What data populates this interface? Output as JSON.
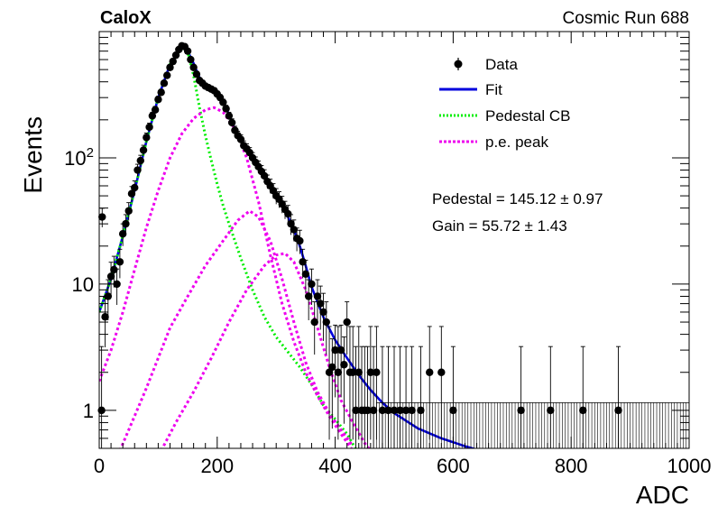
{
  "header": {
    "left_label": "CaloX",
    "right_label": "Cosmic Run 688"
  },
  "chart_data": {
    "type": "scatter",
    "title": "",
    "xlabel": "ADC",
    "ylabel": "Events",
    "xlim": [
      0,
      1000
    ],
    "ylim": [
      0.5,
      1000
    ],
    "yscale": "log",
    "x_ticks": [
      0,
      200,
      400,
      600,
      800,
      1000
    ],
    "x_tick_labels": [
      "0",
      "200",
      "400",
      "600",
      "800",
      "1000"
    ],
    "y_ticks": [
      1,
      10,
      100
    ],
    "y_tick_labels": [
      "1",
      "10",
      "10^2"
    ],
    "grid": false,
    "legend_position": "top-right",
    "legend": [
      {
        "label": "Data",
        "style": "markers-errorbars",
        "color": "#000000"
      },
      {
        "label": "Fit",
        "style": "solid",
        "color": "#0000dd"
      },
      {
        "label": "Pedestal CB",
        "style": "dotted",
        "color": "#00ee00"
      },
      {
        "label": "p.e. peak",
        "style": "dotted",
        "color": "#ee00ee"
      }
    ],
    "annotations": [
      {
        "text": "Pedestal = 145.12",
        "pm": "0.97"
      },
      {
        "text": "Gain = 55.72",
        "pm": "1.43"
      }
    ],
    "parameters": {
      "pedestal": 145.12,
      "pedestal_err": 0.97,
      "gain": 55.72,
      "gain_err": 1.43
    },
    "series": [
      {
        "name": "Data",
        "type": "scatter",
        "color": "#000000",
        "points": [
          [
            4,
            1
          ],
          [
            5,
            34
          ],
          [
            10,
            5.5
          ],
          [
            15,
            8
          ],
          [
            20,
            11.5
          ],
          [
            25,
            13
          ],
          [
            30,
            10
          ],
          [
            35,
            15
          ],
          [
            40,
            25
          ],
          [
            45,
            30
          ],
          [
            50,
            38
          ],
          [
            55,
            52
          ],
          [
            60,
            58
          ],
          [
            65,
            80
          ],
          [
            70,
            95
          ],
          [
            75,
            115
          ],
          [
            80,
            145
          ],
          [
            85,
            175
          ],
          [
            90,
            215
          ],
          [
            95,
            240
          ],
          [
            100,
            290
          ],
          [
            105,
            330
          ],
          [
            110,
            390
          ],
          [
            115,
            450
          ],
          [
            120,
            520
          ],
          [
            125,
            580
          ],
          [
            130,
            650
          ],
          [
            135,
            720
          ],
          [
            140,
            770
          ],
          [
            145,
            760
          ],
          [
            150,
            700
          ],
          [
            155,
            600
          ],
          [
            160,
            520
          ],
          [
            165,
            460
          ],
          [
            170,
            410
          ],
          [
            175,
            390
          ],
          [
            180,
            370
          ],
          [
            185,
            360
          ],
          [
            190,
            350
          ],
          [
            195,
            340
          ],
          [
            200,
            320
          ],
          [
            205,
            300
          ],
          [
            210,
            275
          ],
          [
            215,
            245
          ],
          [
            220,
            215
          ],
          [
            225,
            190
          ],
          [
            230,
            165
          ],
          [
            235,
            150
          ],
          [
            240,
            140
          ],
          [
            245,
            125
          ],
          [
            250,
            118
          ],
          [
            255,
            110
          ],
          [
            260,
            100
          ],
          [
            265,
            92
          ],
          [
            270,
            85
          ],
          [
            275,
            78
          ],
          [
            280,
            72
          ],
          [
            285,
            65
          ],
          [
            290,
            60
          ],
          [
            295,
            55
          ],
          [
            300,
            50
          ],
          [
            305,
            47
          ],
          [
            310,
            43
          ],
          [
            315,
            39
          ],
          [
            320,
            36
          ],
          [
            325,
            30
          ],
          [
            330,
            27
          ],
          [
            335,
            23
          ],
          [
            340,
            22
          ],
          [
            345,
            15
          ],
          [
            350,
            12
          ],
          [
            355,
            8
          ],
          [
            360,
            10
          ],
          [
            365,
            5
          ],
          [
            370,
            8
          ],
          [
            375,
            7
          ],
          [
            380,
            6
          ],
          [
            385,
            5
          ],
          [
            390,
            2
          ],
          [
            395,
            2.2
          ],
          [
            400,
            3
          ],
          [
            405,
            2
          ],
          [
            410,
            3
          ],
          [
            415,
            2.3
          ],
          [
            420,
            5
          ],
          [
            425,
            2
          ],
          [
            430,
            2
          ],
          [
            435,
            1
          ],
          [
            440,
            2
          ],
          [
            445,
            1
          ],
          [
            450,
            1
          ],
          [
            455,
            1
          ],
          [
            460,
            2
          ],
          [
            465,
            1
          ],
          [
            470,
            2
          ],
          [
            480,
            1
          ],
          [
            490,
            1
          ],
          [
            500,
            1
          ],
          [
            510,
            1
          ],
          [
            520,
            1
          ],
          [
            530,
            1
          ],
          [
            545,
            1
          ],
          [
            560,
            2
          ],
          [
            580,
            2
          ],
          [
            600,
            1
          ],
          [
            715,
            1
          ],
          [
            765,
            1
          ],
          [
            820,
            1
          ],
          [
            880,
            1
          ]
        ]
      },
      {
        "name": "Fit",
        "type": "line",
        "color": "#0000dd",
        "points": [
          [
            0,
            6
          ],
          [
            20,
            11
          ],
          [
            40,
            24
          ],
          [
            60,
            55
          ],
          [
            80,
            135
          ],
          [
            100,
            300
          ],
          [
            120,
            550
          ],
          [
            140,
            750
          ],
          [
            150,
            700
          ],
          [
            160,
            560
          ],
          [
            170,
            430
          ],
          [
            180,
            380
          ],
          [
            190,
            350
          ],
          [
            200,
            320
          ],
          [
            210,
            280
          ],
          [
            220,
            220
          ],
          [
            230,
            170
          ],
          [
            240,
            140
          ],
          [
            250,
            120
          ],
          [
            260,
            100
          ],
          [
            270,
            85
          ],
          [
            280,
            72
          ],
          [
            290,
            60
          ],
          [
            300,
            50
          ],
          [
            310,
            42
          ],
          [
            320,
            34
          ],
          [
            330,
            27
          ],
          [
            340,
            20
          ],
          [
            350,
            14
          ],
          [
            360,
            9.5
          ],
          [
            380,
            5.5
          ],
          [
            400,
            3.6
          ],
          [
            420,
            2.6
          ],
          [
            440,
            1.9
          ],
          [
            460,
            1.45
          ],
          [
            480,
            1.15
          ],
          [
            500,
            0.95
          ],
          [
            540,
            0.72
          ],
          [
            580,
            0.6
          ],
          [
            620,
            0.52
          ],
          [
            660,
            0.46
          ],
          [
            680,
            0.44
          ]
        ]
      },
      {
        "name": "Pedestal CB",
        "type": "line",
        "color": "#00ee00",
        "points": [
          [
            0,
            6
          ],
          [
            20,
            11
          ],
          [
            40,
            24
          ],
          [
            60,
            55
          ],
          [
            80,
            135
          ],
          [
            100,
            300
          ],
          [
            120,
            550
          ],
          [
            140,
            750
          ],
          [
            150,
            690
          ],
          [
            160,
            450
          ],
          [
            170,
            250
          ],
          [
            180,
            150
          ],
          [
            190,
            95
          ],
          [
            200,
            62
          ],
          [
            210,
            42
          ],
          [
            220,
            30
          ],
          [
            240,
            16
          ],
          [
            260,
            9
          ],
          [
            280,
            5.5
          ],
          [
            300,
            3.8
          ],
          [
            320,
            2.9
          ],
          [
            340,
            2.2
          ],
          [
            360,
            1.6
          ],
          [
            380,
            1.1
          ],
          [
            400,
            0.85
          ],
          [
            420,
            0.65
          ],
          [
            440,
            0.45
          ]
        ]
      },
      {
        "name": "p.e. peak",
        "type": "line",
        "color": "#ee00ee",
        "curves": [
          [
            [
              0,
              1.7
            ],
            [
              20,
              3
            ],
            [
              40,
              6
            ],
            [
              60,
              13
            ],
            [
              80,
              28
            ],
            [
              100,
              55
            ],
            [
              120,
              100
            ],
            [
              140,
              155
            ],
            [
              160,
              205
            ],
            [
              180,
              240
            ],
            [
              195,
              250
            ],
            [
              210,
              230
            ],
            [
              230,
              170
            ],
            [
              250,
              100
            ],
            [
              270,
              45
            ],
            [
              290,
              17
            ],
            [
              310,
              7
            ],
            [
              330,
              3.5
            ],
            [
              350,
              2
            ],
            [
              370,
              1.3
            ],
            [
              390,
              0.9
            ],
            [
              410,
              0.65
            ],
            [
              430,
              0.48
            ]
          ],
          [
            [
              35,
              0.48
            ],
            [
              60,
              0.9
            ],
            [
              80,
              1.5
            ],
            [
              100,
              2.6
            ],
            [
              120,
              4.5
            ],
            [
              150,
              8
            ],
            [
              180,
              14
            ],
            [
              210,
              22
            ],
            [
              235,
              32
            ],
            [
              255,
              38
            ],
            [
              270,
              34
            ],
            [
              290,
              22
            ],
            [
              310,
              11
            ],
            [
              330,
              5
            ],
            [
              350,
              2.4
            ],
            [
              370,
              1.4
            ],
            [
              390,
              0.95
            ],
            [
              410,
              0.7
            ],
            [
              430,
              0.52
            ]
          ],
          [
            [
              105,
              0.48
            ],
            [
              130,
              0.8
            ],
            [
              160,
              1.4
            ],
            [
              190,
              2.6
            ],
            [
              220,
              5
            ],
            [
              250,
              9
            ],
            [
              280,
              14
            ],
            [
              300,
              17
            ],
            [
              315,
              17.5
            ],
            [
              330,
              15
            ],
            [
              350,
              9
            ],
            [
              370,
              4.5
            ],
            [
              390,
              2.2
            ],
            [
              410,
              1.2
            ],
            [
              430,
              0.8
            ],
            [
              450,
              0.55
            ],
            [
              460,
              0.48
            ]
          ]
        ]
      }
    ]
  }
}
